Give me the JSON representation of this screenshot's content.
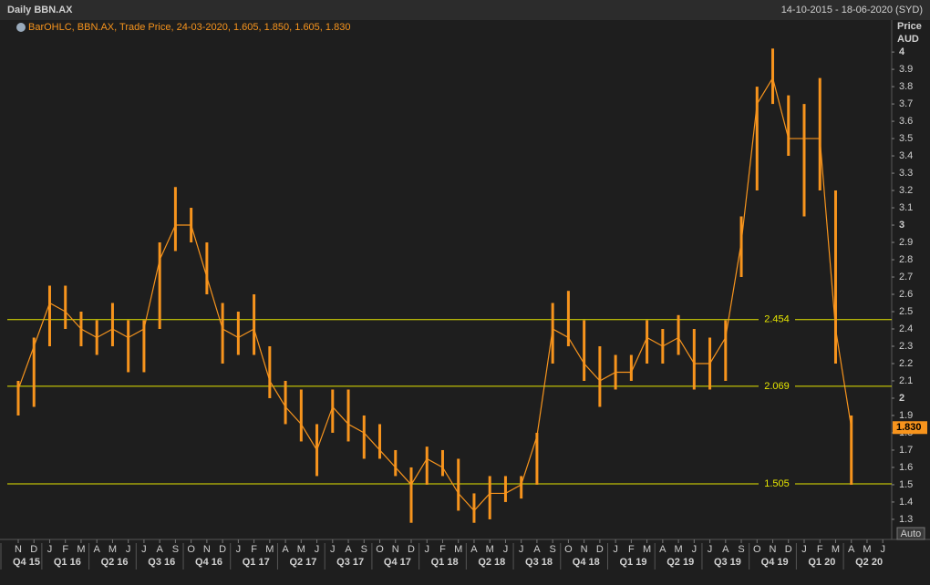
{
  "chart_data": {
    "type": "ohlc",
    "title": "Daily BBN.AX",
    "subtitle": "14-10-2015 - 18-06-2020 (SYD)",
    "legend_text": "BarOHLC, BBN.AX, Trade Price, 24-03-2020, 1.605, 1.850, 1.605, 1.830",
    "y_label": "Price",
    "y_unit": "AUD",
    "color": "#f7941d",
    "level_color": "#e6e600",
    "ylim": [
      1.247,
      4.09
    ],
    "yticks": [
      1.3,
      1.4,
      1.5,
      1.6,
      1.7,
      1.8,
      1.9,
      2,
      2.1,
      2.2,
      2.3,
      2.4,
      2.5,
      2.6,
      2.7,
      2.8,
      2.9,
      3,
      3.1,
      3.2,
      3.3,
      3.4,
      3.5,
      3.6,
      3.7,
      3.8,
      3.9,
      4
    ],
    "categories": [
      "N",
      "D",
      "J",
      "F",
      "M",
      "A",
      "M",
      "J",
      "J",
      "A",
      "S",
      "O",
      "N",
      "D",
      "J",
      "F",
      "M",
      "A",
      "M",
      "J",
      "J",
      "A",
      "S",
      "O",
      "N",
      "D",
      "J",
      "F",
      "M",
      "A",
      "M",
      "J",
      "J",
      "A",
      "S",
      "O",
      "N",
      "D",
      "J",
      "F",
      "M",
      "A",
      "M",
      "J",
      "J",
      "A",
      "S",
      "O",
      "N",
      "D",
      "J",
      "F",
      "M",
      "A",
      "M",
      "J"
    ],
    "quarters": [
      "Q4 15",
      "Q1 16",
      "Q2 16",
      "Q3 16",
      "Q4 16",
      "Q1 17",
      "Q2 17",
      "Q3 17",
      "Q4 17",
      "Q1 18",
      "Q2 18",
      "Q3 18",
      "Q4 18",
      "Q1 19",
      "Q2 19",
      "Q3 19",
      "Q4 19",
      "Q1 20",
      "Q2 20"
    ],
    "low": [
      1.9,
      1.95,
      2.3,
      2.4,
      2.3,
      2.25,
      2.3,
      2.15,
      2.15,
      2.4,
      2.85,
      2.9,
      2.6,
      2.2,
      2.25,
      2.25,
      2.0,
      1.85,
      1.75,
      1.55,
      1.8,
      1.75,
      1.65,
      1.65,
      1.55,
      1.28,
      1.5,
      1.55,
      1.35,
      1.28,
      1.3,
      1.4,
      1.42,
      1.5,
      2.2,
      2.3,
      2.1,
      1.95,
      2.05,
      2.1,
      2.2,
      2.2,
      2.25,
      2.05,
      2.05,
      2.1,
      2.7,
      3.2,
      3.7,
      3.4,
      3.05,
      3.2,
      2.2,
      1.5,
      null,
      null
    ],
    "high": [
      2.1,
      2.35,
      2.65,
      2.65,
      2.5,
      2.45,
      2.55,
      2.45,
      2.45,
      2.9,
      3.22,
      3.1,
      2.9,
      2.55,
      2.5,
      2.6,
      2.3,
      2.1,
      2.05,
      1.85,
      2.05,
      2.05,
      1.9,
      1.85,
      1.7,
      1.6,
      1.72,
      1.7,
      1.65,
      1.45,
      1.55,
      1.55,
      1.55,
      1.8,
      2.55,
      2.62,
      2.45,
      2.3,
      2.25,
      2.25,
      2.45,
      2.4,
      2.48,
      2.4,
      2.35,
      2.45,
      3.05,
      3.8,
      4.02,
      3.75,
      3.7,
      3.85,
      3.2,
      1.9,
      null,
      null
    ],
    "close": [
      2.05,
      2.3,
      2.55,
      2.5,
      2.4,
      2.35,
      2.4,
      2.35,
      2.4,
      2.8,
      3.0,
      3.0,
      2.7,
      2.4,
      2.35,
      2.4,
      2.1,
      1.95,
      1.85,
      1.7,
      1.95,
      1.85,
      1.8,
      1.7,
      1.6,
      1.5,
      1.65,
      1.6,
      1.45,
      1.35,
      1.45,
      1.45,
      1.5,
      1.78,
      2.4,
      2.35,
      2.2,
      2.1,
      2.15,
      2.15,
      2.35,
      2.3,
      2.35,
      2.2,
      2.2,
      2.35,
      2.9,
      3.7,
      3.85,
      3.5,
      3.5,
      3.5,
      2.4,
      1.83,
      null,
      null
    ],
    "levels": [
      2.454,
      2.069,
      1.505
    ],
    "last_value": 1.83,
    "last_value_label": "1.830",
    "auto_button": "Auto"
  }
}
